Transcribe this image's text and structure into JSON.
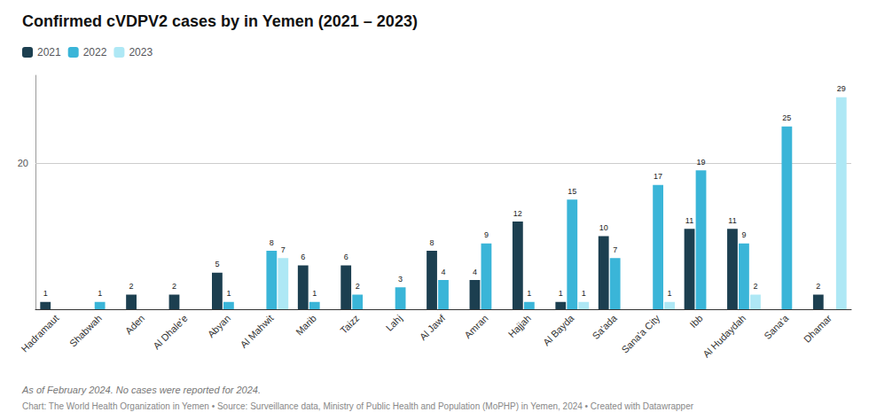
{
  "chart_data": {
    "type": "bar",
    "title": "Confirmed cVDPV2 cases by in Yemen (2021 – 2023)",
    "categories": [
      "Hadramaut",
      "Shabwah",
      "Aden",
      "Al Dhale'e",
      "Abyan",
      "Al Mahwit",
      "Marib",
      "Taizz",
      "Lahj",
      "Al Jawf",
      "Amran",
      "Hajjah",
      "Al Bayda",
      "Sa'ada",
      "Sana'a City",
      "Ibb",
      "Al Hudaydah",
      "Sana'a",
      "Dhamar"
    ],
    "series": [
      {
        "name": "2021",
        "color": "#1c3f50",
        "values": [
          1,
          0,
          2,
          2,
          5,
          0,
          6,
          6,
          0,
          8,
          4,
          12,
          1,
          10,
          0,
          11,
          11,
          0,
          2
        ]
      },
      {
        "name": "2022",
        "color": "#3ab5d8",
        "values": [
          0,
          1,
          0,
          0,
          1,
          8,
          1,
          2,
          3,
          4,
          9,
          1,
          15,
          7,
          17,
          19,
          9,
          25,
          0
        ]
      },
      {
        "name": "2023",
        "color": "#aee8f5",
        "values": [
          0,
          0,
          0,
          0,
          0,
          7,
          0,
          0,
          0,
          0,
          0,
          0,
          1,
          0,
          1,
          0,
          2,
          0,
          29
        ]
      }
    ],
    "ylim": [
      0,
      32
    ],
    "yticks": [
      20
    ],
    "grid": true,
    "legend": "upper left",
    "data_labels": true,
    "annotations": [
      "As of February 2024. No cases were reported for 2024.",
      "Chart: The World Health Organization in Yemen • Source: Surveillance data, Ministry of Public Health and Population (MoPHP) in Yemen, 2024 • Created with Datawrapper"
    ]
  }
}
